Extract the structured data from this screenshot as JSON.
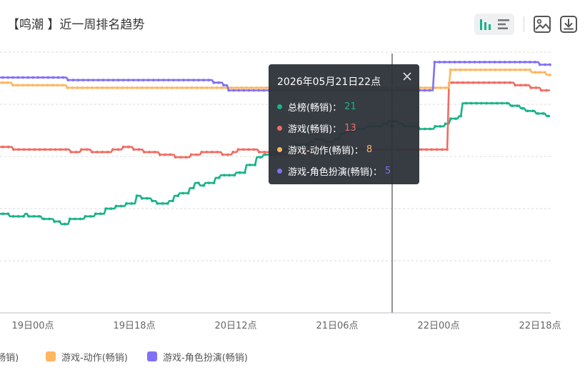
{
  "title": "【鸣潮 】近一周排名趋势",
  "toolbar": {
    "icons": [
      "bar-chart-icon",
      "horizontal-bar-icon",
      "image-icon",
      "download-icon"
    ],
    "accent": "#19b38a"
  },
  "chart_data": {
    "type": "line",
    "y_inverted": true,
    "grid": true,
    "legend_position": "bottom",
    "x_ticks": [
      "19日00点",
      "19日18点",
      "20日12点",
      "21日06点",
      "22日00点",
      "22日18点"
    ],
    "series": [
      {
        "name": "总榜(畅销)",
        "color": "#19b38a",
        "values": [
          64,
          64,
          64,
          64,
          64,
          64,
          64,
          65,
          65,
          65,
          65,
          65,
          65,
          65,
          65,
          65,
          64,
          64,
          65,
          65,
          65,
          65,
          65,
          65,
          65,
          65,
          66,
          66,
          66,
          66,
          66,
          66,
          66,
          67,
          67,
          67,
          67,
          68,
          68,
          68,
          68,
          68,
          66,
          66,
          66,
          66,
          66,
          66,
          66,
          66,
          66,
          65,
          65,
          65,
          65,
          65,
          65,
          64,
          64,
          64,
          64,
          64,
          64,
          62,
          62,
          62,
          62,
          62,
          62,
          61,
          61,
          61,
          61,
          61,
          61,
          60,
          60,
          60,
          60,
          60,
          60,
          57,
          57,
          57,
          58,
          58,
          58,
          58,
          58,
          58,
          59,
          59,
          59,
          60,
          60,
          60,
          60,
          60,
          60,
          60,
          59,
          59,
          59,
          57,
          57,
          57,
          56,
          56,
          56,
          56,
          56,
          56,
          54,
          54,
          54,
          52,
          52,
          52,
          53,
          53,
          53,
          52,
          52,
          52,
          52,
          52,
          52,
          50,
          50,
          50,
          49,
          49,
          49,
          49,
          49,
          49,
          49,
          49,
          49,
          48,
          48,
          48,
          48,
          48,
          48,
          45,
          45,
          45,
          45,
          45,
          45,
          42,
          42,
          42,
          42,
          41,
          41,
          41,
          41,
          41,
          41,
          41,
          41,
          41,
          40,
          40,
          40,
          39,
          39,
          39,
          38,
          38,
          38,
          37,
          37,
          37,
          37,
          37,
          37,
          37,
          37,
          37,
          36,
          36,
          36,
          35,
          35,
          35,
          35,
          35,
          35,
          36,
          36,
          36,
          36,
          36,
          36,
          35,
          35,
          35,
          33,
          33,
          33,
          32,
          32,
          32,
          32,
          32,
          32,
          31,
          31,
          31,
          31,
          31,
          31,
          30,
          30,
          30,
          30,
          30,
          30,
          30,
          30,
          30,
          30,
          29,
          29,
          29,
          28,
          28,
          28,
          28,
          28,
          28,
          29,
          29,
          29,
          30,
          30,
          30,
          30,
          30,
          30,
          30,
          30,
          30,
          31,
          31,
          31,
          31,
          31,
          31,
          31,
          31,
          31,
          30,
          30,
          30,
          30,
          30,
          30,
          29,
          29,
          29,
          27,
          27,
          27,
          27,
          27,
          26,
          26,
          21,
          21,
          21,
          21,
          21,
          21,
          21,
          21,
          21,
          21,
          21,
          21,
          21,
          21,
          21,
          21,
          21,
          21,
          21,
          21,
          21,
          21,
          21,
          21,
          21,
          21,
          21,
          21,
          22,
          22,
          22,
          22,
          22,
          22,
          23,
          23,
          23,
          24,
          24,
          24,
          24,
          24,
          24,
          25,
          25,
          25,
          25,
          25,
          25,
          26,
          26,
          26
        ]
      },
      {
        "name": "游戏(畅销)",
        "color": "#f16c62",
        "values": [
          38,
          38,
          38,
          38,
          38,
          38,
          38,
          38,
          38,
          39,
          39,
          39,
          39,
          39,
          39,
          39,
          39,
          39,
          39,
          39,
          39,
          39,
          39,
          39,
          39,
          39,
          39,
          39,
          39,
          39,
          39,
          39,
          39,
          39,
          39,
          39,
          39,
          39,
          39,
          39,
          39,
          39,
          40,
          40,
          40,
          40,
          40,
          40,
          39,
          39,
          39,
          39,
          39,
          39,
          40,
          40,
          40,
          40,
          40,
          40,
          40,
          40,
          40,
          40,
          40,
          40,
          39,
          39,
          39,
          39,
          39,
          39,
          38,
          38,
          38,
          38,
          38,
          38,
          39,
          39,
          39,
          39,
          39,
          39,
          40,
          40,
          40,
          40,
          40,
          40,
          40,
          40,
          40,
          41,
          41,
          41,
          41,
          41,
          41,
          41,
          41,
          41,
          42,
          42,
          42,
          42,
          42,
          42,
          42,
          42,
          42,
          41,
          41,
          41,
          41,
          41,
          41,
          40,
          40,
          40,
          40,
          40,
          40,
          40,
          40,
          40,
          40,
          40,
          40,
          41,
          41,
          41,
          41,
          41,
          41,
          40,
          40,
          40,
          39,
          39,
          39,
          39,
          39,
          39,
          39,
          39,
          39,
          39,
          39,
          39,
          40,
          40,
          40,
          40,
          40,
          40,
          40,
          40,
          40,
          40,
          40,
          40,
          41,
          41,
          41,
          41,
          41,
          41,
          41,
          41,
          41,
          41,
          41,
          41,
          40,
          40,
          40,
          40,
          40,
          40,
          39,
          39,
          39,
          38,
          38,
          38,
          38,
          38,
          38,
          38,
          38,
          38,
          38,
          38,
          38,
          38,
          38,
          38,
          38,
          38,
          38,
          39,
          39,
          39,
          39,
          39,
          39,
          39,
          39,
          39,
          39,
          39,
          39,
          39,
          39,
          39,
          39,
          39,
          39,
          39,
          39,
          39,
          39,
          39,
          39,
          39,
          39,
          39,
          39,
          39,
          39,
          39,
          39,
          39,
          39,
          39,
          39,
          39,
          39,
          39,
          39,
          39,
          39,
          39,
          39,
          39,
          39,
          39,
          39,
          39,
          39,
          39,
          39,
          39,
          39,
          39,
          39,
          39,
          39,
          13,
          13,
          13,
          13,
          13,
          13,
          13,
          13,
          13,
          13,
          13,
          13,
          13,
          13,
          13,
          13,
          13,
          13,
          13,
          13,
          13,
          13,
          13,
          13,
          13,
          13,
          13,
          13,
          13,
          13,
          13,
          13,
          13,
          13,
          13,
          13,
          13,
          13,
          14,
          14,
          14,
          14,
          14,
          14,
          14,
          14,
          14,
          15,
          15,
          15,
          15,
          15,
          15,
          16,
          16,
          16,
          16,
          16,
          16
        ]
      },
      {
        "name": "游戏-动作(畅销)",
        "color": "#ffb660",
        "values": [
          13,
          13,
          13,
          13,
          13,
          13,
          13,
          13,
          13,
          14,
          14,
          14,
          14,
          14,
          14,
          14,
          14,
          14,
          14,
          14,
          14,
          14,
          14,
          14,
          14,
          14,
          14,
          14,
          14,
          14,
          14,
          14,
          14,
          14,
          14,
          14,
          14,
          14,
          14,
          14,
          14,
          14,
          15,
          15,
          15,
          15,
          15,
          15,
          15,
          15,
          15,
          15,
          15,
          15,
          15,
          15,
          15,
          15,
          15,
          15,
          15,
          15,
          15,
          15,
          15,
          15,
          15,
          15,
          15,
          15,
          15,
          15,
          15,
          15,
          15,
          15,
          15,
          15,
          15,
          15,
          15,
          15,
          15,
          15,
          15,
          15,
          15,
          15,
          15,
          15,
          15,
          15,
          15,
          15,
          15,
          15,
          15,
          15,
          15,
          15,
          15,
          15,
          15,
          15,
          15,
          15,
          15,
          15,
          15,
          15,
          15,
          15,
          15,
          15,
          15,
          15,
          15,
          15,
          15,
          15,
          15,
          15,
          15,
          15,
          15,
          15,
          15,
          15,
          15,
          15,
          15,
          15,
          15,
          15,
          15,
          15,
          15,
          15,
          15,
          15,
          15,
          15,
          15,
          15,
          15,
          15,
          15,
          15,
          15,
          15,
          15,
          15,
          15,
          15,
          15,
          15,
          15,
          15,
          15,
          15,
          15,
          15,
          15,
          15,
          15,
          15,
          15,
          15,
          15,
          15,
          15,
          15,
          15,
          15,
          15,
          15,
          15,
          15,
          15,
          15,
          15,
          15,
          15,
          15,
          15,
          15,
          15,
          15,
          15,
          15,
          15,
          15,
          15,
          15,
          15,
          15,
          15,
          15,
          15,
          15,
          15,
          15,
          15,
          15,
          15,
          15,
          15,
          15,
          15,
          15,
          15,
          15,
          15,
          15,
          15,
          15,
          15,
          15,
          15,
          15,
          15,
          15,
          15,
          15,
          15,
          15,
          15,
          15,
          15,
          15,
          15,
          15,
          15,
          15,
          15,
          15,
          15,
          15,
          15,
          15,
          15,
          15,
          15,
          15,
          15,
          15,
          15,
          15,
          15,
          15,
          15,
          15,
          15,
          15,
          15,
          15,
          15,
          15,
          15,
          15,
          15,
          15,
          15,
          15,
          15,
          15,
          15,
          15,
          15,
          15,
          15,
          15,
          15,
          8,
          8,
          8,
          8,
          8,
          8,
          8,
          8,
          8,
          8,
          8,
          8,
          8,
          8,
          8,
          8,
          8,
          8,
          8,
          8,
          8,
          8,
          8,
          8,
          8,
          8,
          8,
          8,
          8,
          8,
          8,
          8,
          8,
          8,
          8,
          8,
          8,
          8,
          8,
          8,
          8,
          8,
          8,
          8,
          8,
          8,
          8,
          8,
          8,
          9,
          9,
          9,
          9,
          9,
          9,
          9,
          9,
          9,
          10,
          10,
          10
        ]
      },
      {
        "name": "游戏-角色扮演(畅销)",
        "color": "#8170f5",
        "values": [
          11,
          11,
          11,
          11,
          11,
          11,
          11,
          11,
          11,
          11,
          11,
          11,
          11,
          11,
          11,
          11,
          11,
          11,
          11,
          11,
          11,
          11,
          11,
          11,
          11,
          11,
          11,
          11,
          11,
          11,
          11,
          11,
          11,
          11,
          11,
          11,
          11,
          11,
          11,
          11,
          11,
          11,
          12,
          12,
          12,
          12,
          12,
          12,
          12,
          12,
          12,
          12,
          12,
          12,
          12,
          12,
          12,
          12,
          12,
          12,
          12,
          12,
          12,
          12,
          12,
          12,
          12,
          12,
          12,
          12,
          12,
          12,
          12,
          12,
          12,
          12,
          12,
          12,
          12,
          12,
          12,
          12,
          12,
          12,
          12,
          12,
          12,
          12,
          12,
          12,
          12,
          12,
          12,
          12,
          12,
          12,
          12,
          12,
          12,
          12,
          12,
          12,
          12,
          12,
          12,
          12,
          12,
          12,
          12,
          12,
          12,
          12,
          12,
          12,
          12,
          12,
          12,
          12,
          12,
          12,
          12,
          12,
          12,
          12,
          12,
          12,
          12,
          12,
          12,
          13,
          13,
          13,
          13,
          13,
          13,
          14,
          14,
          14,
          16,
          16,
          16,
          16,
          16,
          16,
          16,
          16,
          16,
          16,
          16,
          16,
          16,
          16,
          16,
          16,
          16,
          16,
          16,
          16,
          16,
          16,
          16,
          16,
          16,
          16,
          16,
          16,
          16,
          16,
          16,
          16,
          16,
          16,
          16,
          16,
          16,
          16,
          16,
          16,
          16,
          16,
          16,
          16,
          16,
          16,
          16,
          16,
          16,
          16,
          16,
          16,
          16,
          16,
          16,
          16,
          16,
          16,
          16,
          16,
          16,
          16,
          16,
          16,
          16,
          16,
          16,
          16,
          16,
          16,
          16,
          16,
          16,
          16,
          16,
          16,
          16,
          16,
          16,
          16,
          16,
          16,
          16,
          16,
          16,
          16,
          16,
          16,
          16,
          16,
          16,
          16,
          16,
          16,
          16,
          16,
          16,
          16,
          16,
          16,
          16,
          16,
          16,
          16,
          16,
          16,
          16,
          16,
          16,
          16,
          16,
          16,
          16,
          16,
          16,
          16,
          16,
          16,
          16,
          16,
          16,
          16,
          16,
          5,
          5,
          5,
          5,
          5,
          5,
          5,
          5,
          5,
          5,
          5,
          5,
          5,
          5,
          5,
          5,
          5,
          5,
          5,
          5,
          5,
          5,
          5,
          5,
          5,
          5,
          5,
          5,
          5,
          5,
          5,
          5,
          5,
          5,
          5,
          5,
          5,
          5,
          5,
          5,
          5,
          5,
          5,
          5,
          5,
          5,
          5,
          5,
          5,
          5,
          5,
          5,
          5,
          5,
          5,
          5,
          5,
          5,
          5,
          5,
          5,
          5,
          5,
          6,
          6,
          6,
          6,
          6,
          6,
          6
        ]
      }
    ]
  },
  "tooltip": {
    "title": "2026年05月21日22点",
    "rows": [
      {
        "name": "总榜(畅销)",
        "sep": "：",
        "value": "21",
        "color": "#19b38a"
      },
      {
        "name": "游戏(畅销)",
        "sep": "：",
        "value": "13",
        "color": "#f16c62"
      },
      {
        "name": "游戏-动作(畅销)",
        "sep": "：",
        "value": "8",
        "color": "#ffb660"
      },
      {
        "name": "游戏-角色扮演(畅销)",
        "sep": "：",
        "value": "5",
        "color": "#8170f5"
      }
    ]
  },
  "legend": [
    {
      "label": "游戏(畅销)",
      "color": "#f16c62"
    },
    {
      "label": "游戏-动作(畅销)",
      "color": "#ffb660"
    },
    {
      "label": "游戏-角色扮演(畅销)",
      "color": "#8170f5"
    }
  ]
}
